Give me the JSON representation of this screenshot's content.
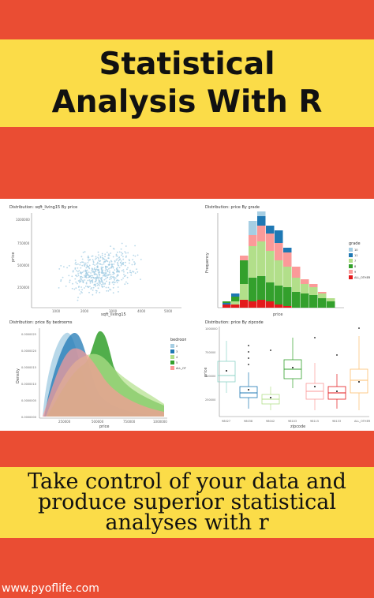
{
  "cover": {
    "title_line1": "Statistical",
    "title_line2": "Analysis With R",
    "subtitle_line1": "Take control of your data and",
    "subtitle_line2": "produce superior statistical",
    "subtitle_line3": "analyses with r",
    "url": "www.pyoflife.com"
  },
  "colors": {
    "background": "#ea4d33",
    "band": "#fbdc48"
  },
  "chart_data": [
    {
      "type": "scatter",
      "title": "Distribution: sqft_living15 By price",
      "xlabel": "sqft_living15",
      "ylabel": "price",
      "x_ticks": [
        "1000",
        "2000",
        "3000",
        "4000",
        "5000"
      ],
      "y_ticks": [
        "250000",
        "500000",
        "750000",
        "1000000"
      ],
      "color": "#9ecae1"
    },
    {
      "type": "bar",
      "title": "Distribution: price By grade",
      "xlabel": "price",
      "ylabel": "Frequency",
      "legend_title": "grade",
      "legend": [
        "10",
        "11",
        "7",
        "8",
        "9",
        "ALL_OTHER"
      ],
      "colors": [
        "#a6cee3",
        "#1f78b4",
        "#b2df8a",
        "#33a02c",
        "#fb9a99",
        "#e31a1c"
      ]
    },
    {
      "type": "area",
      "title": "Distribution: price By bedrooms",
      "xlabel": "price",
      "ylabel": "Density",
      "legend_title": "bedrooms",
      "legend": [
        "2",
        "3",
        "4",
        "5",
        "ALL_OTHER"
      ],
      "x_ticks": [
        "250000",
        "500000",
        "750000",
        "1000000"
      ],
      "y_ticks": [
        "0.0000000",
        "0.0000005",
        "0.0000010",
        "0.0000015",
        "0.0000020",
        "0.0000025"
      ],
      "colors": [
        "#a6cee3",
        "#1f78b4",
        "#b2df8a",
        "#33a02c",
        "#fb9a99"
      ]
    },
    {
      "type": "box",
      "title": "Distribution: price By zipcode",
      "xlabel": "zipcode",
      "ylabel": "price",
      "categories": [
        "98027",
        "98038",
        "98042",
        "98103",
        "98115",
        "98133",
        "ALL_OTHER"
      ],
      "y_ticks": [
        "250000",
        "500000",
        "750000",
        "1000000"
      ],
      "colors": [
        "#8dd3c7",
        "#1f78b4",
        "#b2df8a",
        "#33a02c",
        "#fb9a99",
        "#e31a1c",
        "#fdbf6f"
      ]
    }
  ]
}
